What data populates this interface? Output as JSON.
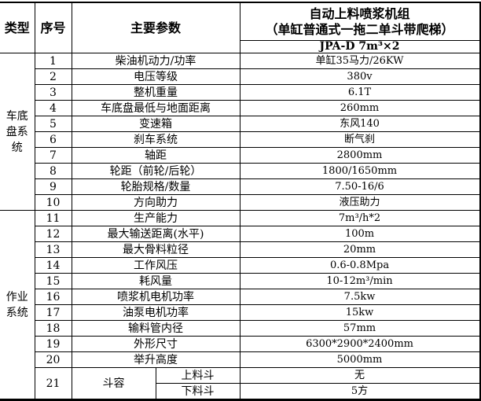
{
  "header": {
    "type": "类型",
    "index": "序号",
    "param": "主要参数",
    "product_line1": "自动上料喷浆机组",
    "product_line2": "（单缸普通式一拖二单斗带爬梯）",
    "model": "JPA-D 7m³×2"
  },
  "groups": [
    {
      "name": "车底盘系统"
    },
    {
      "name": "作业系统"
    }
  ],
  "rows": [
    {
      "no": "1",
      "param": "柴油机动力/功率",
      "value": "单缸35马力/26KW"
    },
    {
      "no": "2",
      "param": "电压等级",
      "value": "380v"
    },
    {
      "no": "3",
      "param": "整机重量",
      "value": "6.1T"
    },
    {
      "no": "4",
      "param": "车底盘最低与地面距离",
      "value": "260mm"
    },
    {
      "no": "5",
      "param": "变速箱",
      "value": "东风140"
    },
    {
      "no": "6",
      "param": "刹车系统",
      "value": "断气刹"
    },
    {
      "no": "7",
      "param": "轴距",
      "value": "2800mm"
    },
    {
      "no": "8",
      "param": "轮距（前轮/后轮）",
      "value": "1800/1650mm"
    },
    {
      "no": "9",
      "param": "轮胎规格/数量",
      "value": "7.50-16/6"
    },
    {
      "no": "10",
      "param": "方向助力",
      "value": "液压助力"
    },
    {
      "no": "11",
      "param": "生产能力",
      "value": "7m³/h*2"
    },
    {
      "no": "12",
      "param": "最大输送距离(水平)",
      "value": "100m"
    },
    {
      "no": "13",
      "param": "最大骨料粒径",
      "value": "20mm"
    },
    {
      "no": "14",
      "param": "工作风压",
      "value": "0.6-0.8Mpa"
    },
    {
      "no": "15",
      "param": "耗风量",
      "value": "10-12m³/min"
    },
    {
      "no": "16",
      "param": "喷浆机电机功率",
      "value": "7.5kw"
    },
    {
      "no": "17",
      "param": "油泵电机功率",
      "value": "15kw"
    },
    {
      "no": "18",
      "param": "输料管内径",
      "value": "57mm"
    },
    {
      "no": "19",
      "param": "外形尺寸",
      "value": "6300*2900*2400mm"
    },
    {
      "no": "20",
      "param": "举升高度",
      "value": "5000mm"
    }
  ],
  "row21": {
    "no": "21",
    "param": "斗容",
    "sub": [
      {
        "label": "上料斗",
        "value": "无"
      },
      {
        "label": "下料斗",
        "value": "5方"
      }
    ]
  }
}
